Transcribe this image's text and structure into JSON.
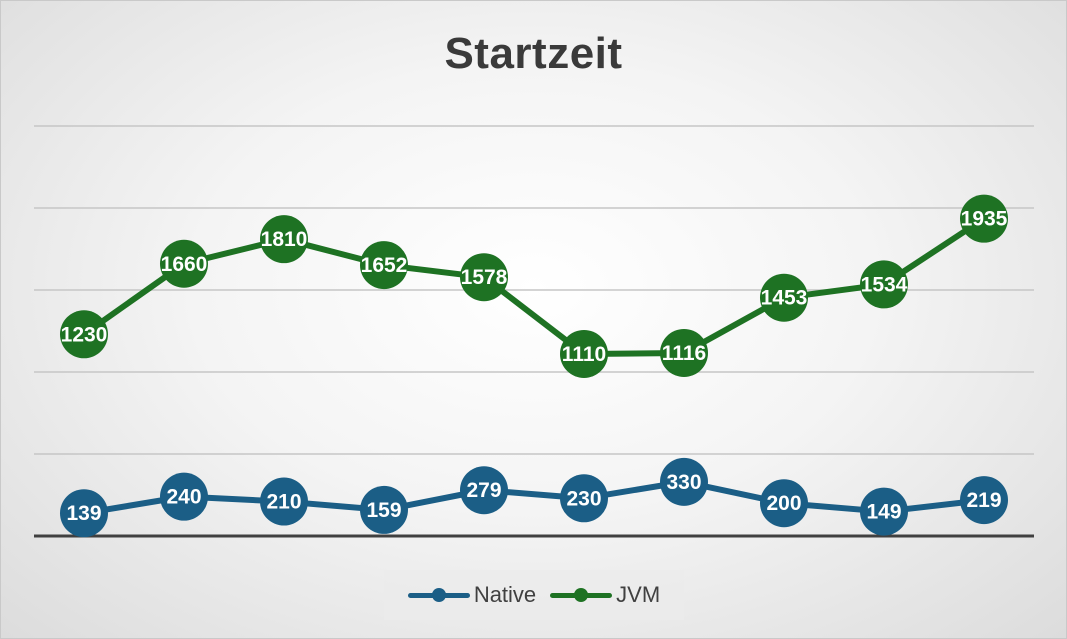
{
  "chart_data": {
    "type": "line",
    "title": "Startzeit",
    "categories": [
      "",
      "",
      "",
      "",
      "",
      "",
      "",
      "",
      "",
      ""
    ],
    "series": [
      {
        "name": "Native",
        "color": "#1b5e86",
        "values": [
          139,
          240,
          210,
          159,
          279,
          230,
          330,
          200,
          149,
          219
        ]
      },
      {
        "name": "JVM",
        "color": "#1e7223",
        "values": [
          1230,
          1660,
          1810,
          1652,
          1578,
          1110,
          1116,
          1453,
          1534,
          1935
        ]
      }
    ],
    "ylim": [
      0,
      2500
    ],
    "grid": true,
    "legend": "bottom",
    "xlabel": "",
    "ylabel": ""
  },
  "legend": {
    "native_label": "Native",
    "jvm_label": "JVM"
  }
}
